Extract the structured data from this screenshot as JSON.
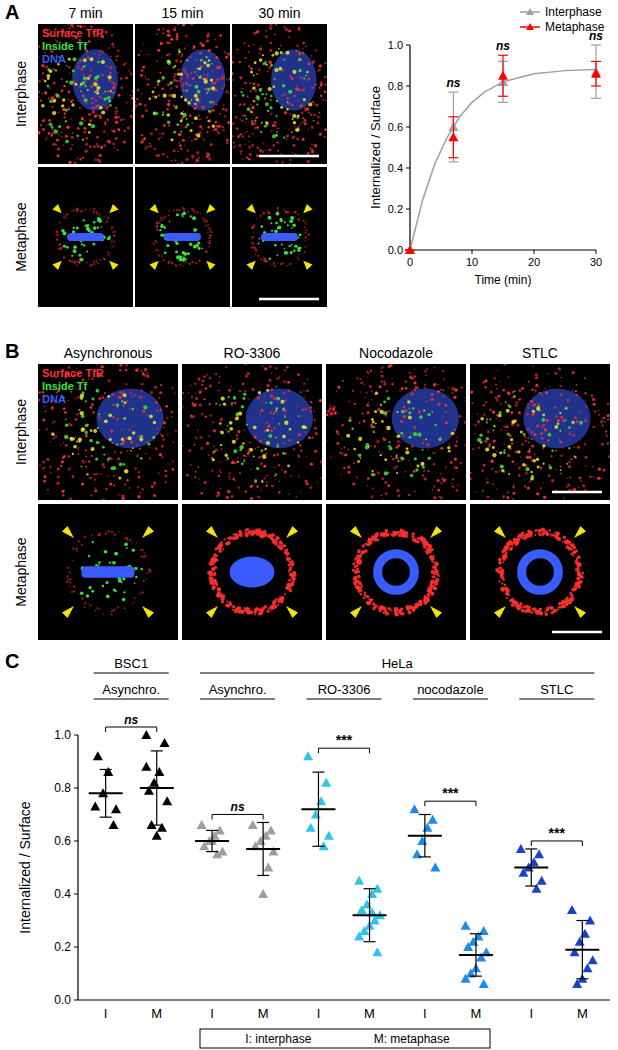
{
  "panels": {
    "A": {
      "label": "A",
      "columns": [
        "7 min",
        "15 min",
        "30 min"
      ],
      "rows": [
        "Interphase",
        "Metaphase"
      ],
      "legend": [
        {
          "text": "Surface TfR",
          "color": "#ff3030"
        },
        {
          "text": "Inside Tf",
          "color": "#3ee03e"
        },
        {
          "text": "DNA",
          "color": "#3a5cff"
        }
      ]
    },
    "B": {
      "label": "B",
      "columns": [
        "Asynchronous",
        "RO-3306",
        "Nocodazole",
        "STLC"
      ],
      "rows": [
        "Interphase",
        "Metaphase"
      ],
      "legend": [
        {
          "text": "Surface TfR",
          "color": "#ff3030"
        },
        {
          "text": "Inside Tf",
          "color": "#3ee03e"
        },
        {
          "text": "DNA",
          "color": "#3a5cff"
        }
      ]
    },
    "C": {
      "label": "C"
    }
  },
  "chart_data": [
    {
      "type": "scatter",
      "x": [
        0,
        7,
        15,
        30
      ],
      "xlim": [
        0,
        30
      ],
      "xticks": [
        0,
        10,
        20,
        30
      ],
      "ylim": [
        0,
        1
      ],
      "yticks": [
        {
          "value": 0,
          "label": "0.0"
        },
        {
          "value": 0.2,
          "label": "0.2"
        },
        {
          "value": 0.4,
          "label": "0.4"
        },
        {
          "value": 0.6,
          "label": "0.6"
        },
        {
          "value": 0.8,
          "label": "0.8"
        },
        {
          "value": 1,
          "label": "1.0"
        }
      ],
      "x_label": "Time (min)",
      "y_label": "Internalized / Surface",
      "legend": "top-right",
      "marker": "triangle",
      "series": [
        {
          "name": "Interphase",
          "color": "#a0a0a0",
          "values": [
            0,
            0.6,
            0.82,
            0.87
          ],
          "errors": [
            0,
            0.17,
            0.1,
            0.13
          ],
          "fit": {
            "x": [
              0,
              2,
              4,
              6,
              8,
              10,
              12,
              15,
              20,
              25,
              30
            ],
            "values": [
              0,
              0.24,
              0.42,
              0.55,
              0.65,
              0.72,
              0.77,
              0.82,
              0.86,
              0.875,
              0.88
            ]
          }
        },
        {
          "name": "Metaphase",
          "color": "#ff0000",
          "values": [
            0,
            0.55,
            0.85,
            0.86
          ],
          "errors": [
            0,
            0.1,
            0.1,
            0.06
          ]
        }
      ],
      "annotations": [
        {
          "x": 7,
          "label": "ns"
        },
        {
          "x": 15,
          "label": "ns"
        },
        {
          "x": 30,
          "label": "ns"
        }
      ]
    },
    {
      "type": "strip",
      "y_label": "Internalized / Surface",
      "ylim": [
        0,
        1
      ],
      "yticks": [
        {
          "value": 0,
          "label": "0.0"
        },
        {
          "value": 0.2,
          "label": "0.2"
        },
        {
          "value": 0.4,
          "label": "0.4"
        },
        {
          "value": 0.6,
          "label": "0.6"
        },
        {
          "value": 0.8,
          "label": "0.8"
        },
        {
          "value": 1,
          "label": "1.0"
        }
      ],
      "marker": "triangle",
      "category_key": [
        "I: interphase",
        "M: metaphase"
      ],
      "cell_lines": [
        {
          "name": "BSC1",
          "conditions": [
            {
              "name": "Asynchro.",
              "color": "#000000",
              "significance": "ns",
              "series": [
                {
                  "name": "I",
                  "values": [
                    0.73,
                    0.66,
                    0.86,
                    0.78,
                    0.92,
                    0.72
                  ],
                  "mean": 0.78,
                  "sd": 0.09
                },
                {
                  "name": "M",
                  "values": [
                    1.0,
                    0.97,
                    0.86,
                    0.82,
                    0.79,
                    0.75,
                    0.65,
                    0.62,
                    0.66,
                    0.88
                  ],
                  "mean": 0.8,
                  "sd": 0.14
                }
              ]
            }
          ]
        },
        {
          "name": "HeLa",
          "conditions": [
            {
              "name": "Asynchro.",
              "color": "#9e9e9e",
              "significance": "ns",
              "series": [
                {
                  "name": "I",
                  "values": [
                    0.66,
                    0.64,
                    0.62,
                    0.6,
                    0.58,
                    0.56,
                    0.55,
                    0.6
                  ],
                  "mean": 0.6,
                  "sd": 0.04
                },
                {
                  "name": "M",
                  "values": [
                    0.66,
                    0.64,
                    0.62,
                    0.6,
                    0.58,
                    0.56,
                    0.5,
                    0.4
                  ],
                  "mean": 0.57,
                  "sd": 0.1
                }
              ]
            },
            {
              "name": "RO-3306",
              "color": "#33c3ea",
              "significance": "***",
              "series": [
                {
                  "name": "I",
                  "values": [
                    0.92,
                    0.82,
                    0.75,
                    0.7,
                    0.65,
                    0.62,
                    0.58
                  ],
                  "mean": 0.72,
                  "sd": 0.14
                },
                {
                  "name": "M",
                  "values": [
                    0.45,
                    0.42,
                    0.4,
                    0.36,
                    0.34,
                    0.32,
                    0.3,
                    0.28,
                    0.26,
                    0.24,
                    0.18,
                    0.33
                  ],
                  "mean": 0.32,
                  "sd": 0.1
                }
              ]
            },
            {
              "name": "nocodazole",
              "color": "#1f8ae8",
              "significance": "***",
              "series": [
                {
                  "name": "I",
                  "values": [
                    0.72,
                    0.68,
                    0.65,
                    0.6,
                    0.55,
                    0.5
                  ],
                  "mean": 0.62,
                  "sd": 0.08
                },
                {
                  "name": "M",
                  "values": [
                    0.28,
                    0.26,
                    0.24,
                    0.22,
                    0.2,
                    0.18,
                    0.16,
                    0.12,
                    0.1,
                    0.08,
                    0.06
                  ],
                  "mean": 0.17,
                  "sd": 0.08
                }
              ]
            },
            {
              "name": "STLC",
              "color": "#1844c8",
              "significance": "***",
              "series": [
                {
                  "name": "I",
                  "values": [
                    0.57,
                    0.55,
                    0.52,
                    0.5,
                    0.48,
                    0.45,
                    0.42
                  ],
                  "mean": 0.5,
                  "sd": 0.07
                },
                {
                  "name": "M",
                  "values": [
                    0.34,
                    0.3,
                    0.25,
                    0.22,
                    0.18,
                    0.15,
                    0.12,
                    0.08,
                    0.06
                  ],
                  "mean": 0.19,
                  "sd": 0.11
                }
              ]
            }
          ]
        }
      ]
    }
  ]
}
